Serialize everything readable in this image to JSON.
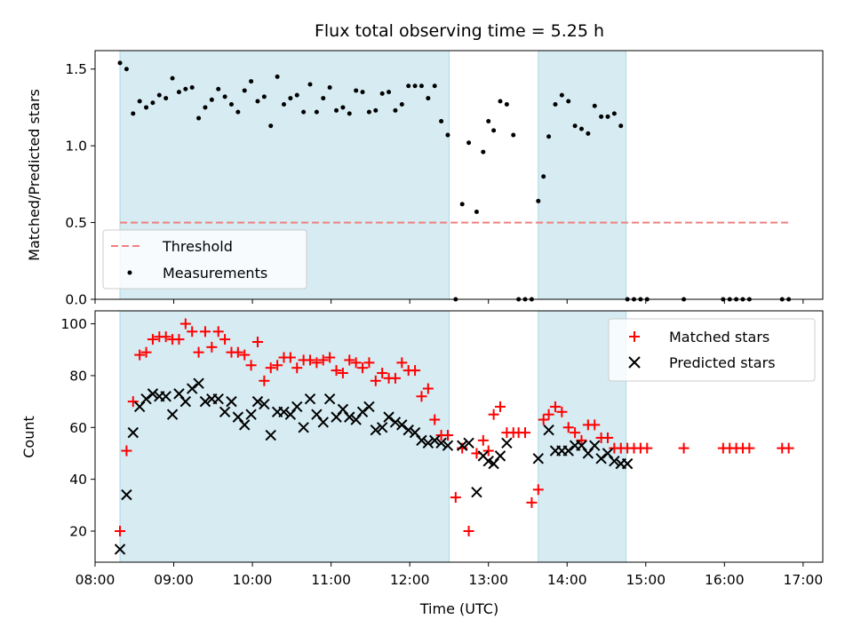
{
  "chart_data": [
    {
      "type": "scatter",
      "title": "Flux total observing time = 5.25 h",
      "xlabel": "",
      "ylabel": "Matched/Predicted stars",
      "ylim": [
        0,
        1.62
      ],
      "yticks": [
        "0.0",
        "0.5",
        "1.0",
        "1.5"
      ],
      "xlim": [
        "08:00",
        "17:15"
      ],
      "grid": false,
      "legend_placement": "lower-left",
      "shaded_intervals": [
        [
          "08:19",
          "12:30"
        ],
        [
          "13:38",
          "14:45"
        ]
      ],
      "shade_color": "#add8e6",
      "series": [
        {
          "name": "Threshold",
          "style": "dashed-line",
          "color": "#f08080",
          "x": [
            "08:19",
            "16:50"
          ],
          "y": [
            0.5,
            0.5
          ]
        },
        {
          "name": "Measurements",
          "style": "dots",
          "color": "#000000",
          "x": [
            "08:19",
            "08:24",
            "08:29",
            "08:34",
            "08:39",
            "08:44",
            "08:49",
            "08:54",
            "08:59",
            "09:04",
            "09:09",
            "09:14",
            "09:19",
            "09:24",
            "09:29",
            "09:34",
            "09:39",
            "09:44",
            "09:49",
            "09:54",
            "09:59",
            "10:04",
            "10:09",
            "10:14",
            "10:19",
            "10:24",
            "10:29",
            "10:34",
            "10:39",
            "10:44",
            "10:49",
            "10:54",
            "10:59",
            "11:04",
            "11:09",
            "11:14",
            "11:19",
            "11:24",
            "11:29",
            "11:34",
            "11:39",
            "11:44",
            "11:49",
            "11:54",
            "11:59",
            "12:04",
            "12:09",
            "12:14",
            "12:19",
            "12:24",
            "12:29",
            "12:35",
            "12:40",
            "12:45",
            "12:51",
            "12:56",
            "13:00",
            "13:04",
            "13:09",
            "13:14",
            "13:19",
            "13:23",
            "13:28",
            "13:33",
            "13:38",
            "13:42",
            "13:46",
            "13:51",
            "13:56",
            "14:01",
            "14:06",
            "14:11",
            "14:16",
            "14:21",
            "14:26",
            "14:31",
            "14:36",
            "14:41",
            "14:46",
            "14:51",
            "14:56",
            "15:01",
            "15:29",
            "15:59",
            "16:04",
            "16:09",
            "16:14",
            "16:19",
            "16:44",
            "16:49"
          ],
          "y": [
            1.54,
            1.5,
            1.21,
            1.29,
            1.25,
            1.28,
            1.33,
            1.31,
            1.44,
            1.35,
            1.37,
            1.38,
            1.18,
            1.25,
            1.3,
            1.37,
            1.32,
            1.27,
            1.22,
            1.36,
            1.42,
            1.29,
            1.32,
            1.13,
            1.45,
            1.27,
            1.31,
            1.33,
            1.22,
            1.4,
            1.22,
            1.31,
            1.38,
            1.23,
            1.25,
            1.21,
            1.36,
            1.35,
            1.22,
            1.23,
            1.34,
            1.35,
            1.23,
            1.27,
            1.39,
            1.39,
            1.39,
            1.31,
            1.39,
            1.16,
            1.07,
            0.0,
            0.62,
            1.02,
            0.57,
            0.96,
            1.16,
            1.1,
            1.29,
            1.27,
            1.07,
            0.0,
            0.0,
            0.0,
            0.64,
            0.8,
            1.06,
            1.27,
            1.33,
            1.29,
            1.13,
            1.11,
            1.08,
            1.26,
            1.19,
            1.19,
            1.21,
            1.13,
            0.0,
            0.0,
            0.0,
            0.0,
            0.0,
            0.0,
            0.0,
            0.0,
            0.0,
            0.0,
            0.0,
            0.0
          ]
        }
      ]
    },
    {
      "type": "scatter",
      "title": "",
      "xlabel": "Time (UTC)",
      "ylabel": "Count",
      "ylim": [
        8,
        105
      ],
      "yticks": [
        "20",
        "40",
        "60",
        "80",
        "100"
      ],
      "xlim": [
        "08:00",
        "17:15"
      ],
      "xticks": [
        "08:00",
        "09:00",
        "10:00",
        "11:00",
        "12:00",
        "13:00",
        "14:00",
        "15:00",
        "16:00",
        "17:00"
      ],
      "grid": false,
      "legend_placement": "upper-right",
      "shaded_intervals": [
        [
          "08:19",
          "12:30"
        ],
        [
          "13:38",
          "14:45"
        ]
      ],
      "shade_color": "#add8e6",
      "series": [
        {
          "name": "Matched stars",
          "marker": "+",
          "color": "#ff0000",
          "x": [
            "08:19",
            "08:24",
            "08:29",
            "08:34",
            "08:39",
            "08:44",
            "08:49",
            "08:54",
            "08:59",
            "09:04",
            "09:09",
            "09:14",
            "09:19",
            "09:24",
            "09:29",
            "09:34",
            "09:39",
            "09:44",
            "09:49",
            "09:54",
            "09:59",
            "10:04",
            "10:09",
            "10:14",
            "10:19",
            "10:24",
            "10:29",
            "10:34",
            "10:39",
            "10:44",
            "10:49",
            "10:54",
            "10:59",
            "11:04",
            "11:09",
            "11:14",
            "11:19",
            "11:24",
            "11:29",
            "11:34",
            "11:39",
            "11:44",
            "11:49",
            "11:54",
            "11:59",
            "12:04",
            "12:09",
            "12:14",
            "12:19",
            "12:24",
            "12:29",
            "12:35",
            "12:40",
            "12:45",
            "12:51",
            "12:56",
            "13:00",
            "13:04",
            "13:09",
            "13:14",
            "13:19",
            "13:23",
            "13:28",
            "13:33",
            "13:38",
            "13:42",
            "13:46",
            "13:51",
            "13:56",
            "14:01",
            "14:06",
            "14:11",
            "14:16",
            "14:21",
            "14:26",
            "14:31",
            "14:36",
            "14:41",
            "14:46",
            "14:51",
            "14:56",
            "15:01",
            "15:29",
            "15:59",
            "16:04",
            "16:09",
            "16:14",
            "16:19",
            "16:44",
            "16:49"
          ],
          "y": [
            20,
            51,
            70,
            88,
            89,
            94,
            95,
            95,
            94,
            94,
            100,
            97,
            89,
            97,
            91,
            97,
            94,
            89,
            89,
            88,
            84,
            93,
            78,
            83,
            84,
            87,
            87,
            83,
            86,
            86,
            85,
            86,
            87,
            82,
            81,
            86,
            85,
            83,
            85,
            78,
            81,
            79,
            79,
            85,
            82,
            82,
            72,
            75,
            63,
            57,
            57,
            33,
            52,
            20,
            50,
            55,
            51,
            65,
            68,
            58,
            58,
            58,
            58,
            31,
            36,
            63,
            65,
            68,
            66,
            60,
            58,
            55,
            61,
            61,
            56,
            56,
            52,
            52,
            52,
            52,
            52,
            52,
            52,
            52,
            52,
            52,
            52,
            52,
            52,
            52
          ]
        },
        {
          "name": "Predicted stars",
          "marker": "x",
          "color": "#000000",
          "x": [
            "08:19",
            "08:24",
            "08:29",
            "08:34",
            "08:39",
            "08:44",
            "08:49",
            "08:54",
            "08:59",
            "09:04",
            "09:09",
            "09:14",
            "09:19",
            "09:24",
            "09:29",
            "09:34",
            "09:39",
            "09:44",
            "09:49",
            "09:54",
            "09:59",
            "10:04",
            "10:09",
            "10:14",
            "10:19",
            "10:24",
            "10:29",
            "10:34",
            "10:39",
            "10:44",
            "10:49",
            "10:54",
            "10:59",
            "11:04",
            "11:09",
            "11:14",
            "11:19",
            "11:24",
            "11:29",
            "11:34",
            "11:39",
            "11:44",
            "11:49",
            "11:54",
            "11:59",
            "12:04",
            "12:09",
            "12:14",
            "12:19",
            "12:24",
            "12:29",
            "12:40",
            "12:45",
            "12:51",
            "12:56",
            "13:00",
            "13:04",
            "13:09",
            "13:14",
            "13:38",
            "13:46",
            "13:51",
            "13:56",
            "14:01",
            "14:06",
            "14:11",
            "14:16",
            "14:21",
            "14:26",
            "14:31",
            "14:36",
            "14:41",
            "14:46"
          ],
          "y": [
            13,
            34,
            58,
            68,
            71,
            73,
            72,
            72,
            65,
            73,
            70,
            75,
            77,
            70,
            71,
            71,
            66,
            70,
            64,
            61,
            65,
            70,
            69,
            57,
            66,
            66,
            65,
            68,
            60,
            71,
            65,
            62,
            71,
            64,
            67,
            64,
            63,
            66,
            68,
            59,
            60,
            64,
            62,
            61,
            59,
            58,
            55,
            54,
            55,
            54,
            53,
            53,
            54,
            35,
            49,
            47,
            46,
            49,
            54,
            48,
            59,
            51,
            51,
            51,
            53,
            53,
            50,
            53,
            48,
            50,
            47,
            46,
            46
          ]
        }
      ]
    }
  ]
}
